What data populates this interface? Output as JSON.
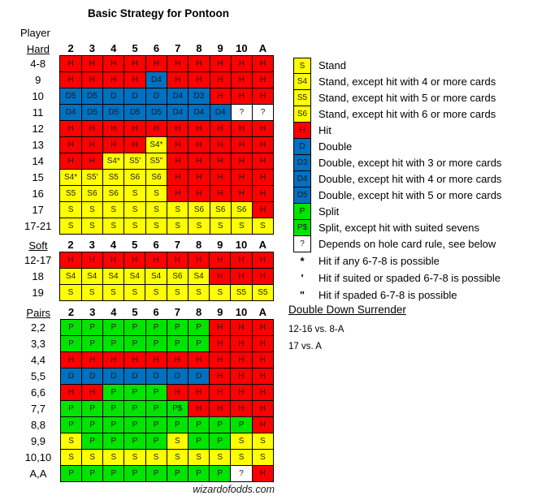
{
  "labels": {
    "player": "Player"
  },
  "footer_text": "wizardofodds.com",
  "colors": {
    "hit": "#FF0000",
    "stand": "#FFFF00",
    "double": "#0070C0",
    "split": "#00E400",
    "unknown": "#FFFFFF",
    "border": "#000000"
  },
  "chart_data": {
    "type": "table",
    "title": "Basic Strategy for Pontoon",
    "columns": [
      "2",
      "3",
      "4",
      "5",
      "6",
      "7",
      "8",
      "9",
      "10",
      "A"
    ],
    "sections": [
      {
        "label": "Hard",
        "rows": [
          {
            "label": "4-8",
            "cells": [
              "H",
              "H",
              "H",
              "H",
              "H",
              "H",
              "H",
              "H",
              "H",
              "H"
            ]
          },
          {
            "label": "9",
            "cells": [
              "H",
              "H",
              "H",
              "H",
              "D4",
              "H",
              "H",
              "H",
              "H",
              "H"
            ]
          },
          {
            "label": "10",
            "cells": [
              "D5",
              "D5",
              "D",
              "D",
              "D",
              "D4",
              "D3",
              "H",
              "H",
              "H"
            ]
          },
          {
            "label": "11",
            "cells": [
              "D4",
              "D5",
              "D5",
              "D5",
              "D5",
              "D4",
              "D4",
              "D4",
              "?",
              "?"
            ]
          },
          {
            "label": "12",
            "cells": [
              "H",
              "H",
              "H",
              "H",
              "H",
              "H",
              "H",
              "H",
              "H",
              "H"
            ]
          },
          {
            "label": "13",
            "cells": [
              "H",
              "H",
              "H",
              "H",
              "S4*",
              "H",
              "H",
              "H",
              "H",
              "H"
            ]
          },
          {
            "label": "14",
            "cells": [
              "H",
              "H",
              "S4*",
              "S5'",
              "S5\"",
              "H",
              "H",
              "H",
              "H",
              "H"
            ]
          },
          {
            "label": "15",
            "cells": [
              "S4*",
              "S5'",
              "S5",
              "S6",
              "S6",
              "H",
              "H",
              "H",
              "H",
              "H"
            ]
          },
          {
            "label": "16",
            "cells": [
              "S5",
              "S6",
              "S6",
              "S",
              "S",
              "H",
              "H",
              "H",
              "H",
              "H"
            ]
          },
          {
            "label": "17",
            "cells": [
              "S",
              "S",
              "S",
              "S",
              "S",
              "S",
              "S6",
              "S6",
              "S6",
              "H"
            ]
          },
          {
            "label": "17-21",
            "cells": [
              "S",
              "S",
              "S",
              "S",
              "S",
              "S",
              "S",
              "S",
              "S",
              "S"
            ]
          }
        ]
      },
      {
        "label": "Soft",
        "rows": [
          {
            "label": "12-17",
            "cells": [
              "H",
              "H",
              "H",
              "H",
              "H",
              "H",
              "H",
              "H",
              "H",
              "H"
            ]
          },
          {
            "label": "18",
            "cells": [
              "S4",
              "S4",
              "S4",
              "S4",
              "S4",
              "S6",
              "S4",
              "H",
              "H",
              "H"
            ]
          },
          {
            "label": "19",
            "cells": [
              "S",
              "S",
              "S",
              "S",
              "S",
              "S",
              "S",
              "S",
              "S5",
              "S5"
            ]
          }
        ]
      },
      {
        "label": "Pairs",
        "rows": [
          {
            "label": "2,2",
            "cells": [
              "P",
              "P",
              "P",
              "P",
              "P",
              "P",
              "P",
              "H",
              "H",
              "H"
            ]
          },
          {
            "label": "3,3",
            "cells": [
              "P",
              "P",
              "P",
              "P",
              "P",
              "P",
              "P",
              "H",
              "H",
              "H"
            ]
          },
          {
            "label": "4,4",
            "cells": [
              "H",
              "H",
              "H",
              "H",
              "H",
              "H",
              "H",
              "H",
              "H",
              "H"
            ]
          },
          {
            "label": "5,5",
            "cells": [
              "D",
              "D",
              "D",
              "D",
              "D",
              "D",
              "D",
              "H",
              "H",
              "H"
            ]
          },
          {
            "label": "6,6",
            "cells": [
              "H",
              "H",
              "P",
              "P",
              "P",
              "H",
              "H",
              "H",
              "H",
              "H"
            ]
          },
          {
            "label": "7,7",
            "cells": [
              "P",
              "P",
              "P",
              "P",
              "P",
              "P$",
              "H",
              "H",
              "H",
              "H"
            ]
          },
          {
            "label": "8,8",
            "cells": [
              "P",
              "P",
              "P",
              "P",
              "P",
              "P",
              "P",
              "P",
              "P",
              "H"
            ]
          },
          {
            "label": "9,9",
            "cells": [
              "S",
              "P",
              "P",
              "P",
              "P",
              "S",
              "P",
              "P",
              "S",
              "S"
            ]
          },
          {
            "label": "10,10",
            "cells": [
              "S",
              "S",
              "S",
              "S",
              "S",
              "S",
              "S",
              "S",
              "S",
              "S"
            ]
          },
          {
            "label": "A,A",
            "cells": [
              "P",
              "P",
              "P",
              "P",
              "P",
              "P",
              "P",
              "P",
              "?",
              "H"
            ]
          }
        ]
      }
    ]
  },
  "legend": [
    {
      "code": "S",
      "label": "Stand"
    },
    {
      "code": "S4",
      "label": "Stand, except hit with 4 or more cards"
    },
    {
      "code": "S5",
      "label": "Stand, except hit with 5 or more cards"
    },
    {
      "code": "S6",
      "label": "Stand, except hit with 6 or more cards"
    },
    {
      "code": "H",
      "label": "Hit"
    },
    {
      "code": "D",
      "label": "Double"
    },
    {
      "code": "D3",
      "label": "Double, except hit with 3 or more cards"
    },
    {
      "code": "D4",
      "label": "Double, except hit with 4 or more cards"
    },
    {
      "code": "D5",
      "label": "Double, except hit with 5 or more cards"
    },
    {
      "code": "P",
      "label": "Split"
    },
    {
      "code": "P$",
      "label": "Split, except hit with suited sevens"
    },
    {
      "code": "?",
      "label": "Depends on hole card rule, see below"
    }
  ],
  "footnotes": [
    {
      "symbol": "*",
      "text": "Hit if any 6-7-8 is possible"
    },
    {
      "symbol": "'",
      "text": "Hit if suited or spaded 6-7-8 is possible"
    },
    {
      "symbol": "\"",
      "text": "Hit if spaded 6-7-8 is possible"
    }
  ],
  "surrender": {
    "heading": "Double Down Surrender",
    "lines": [
      "12-16 vs. 8-A",
      "17 vs. A"
    ]
  }
}
